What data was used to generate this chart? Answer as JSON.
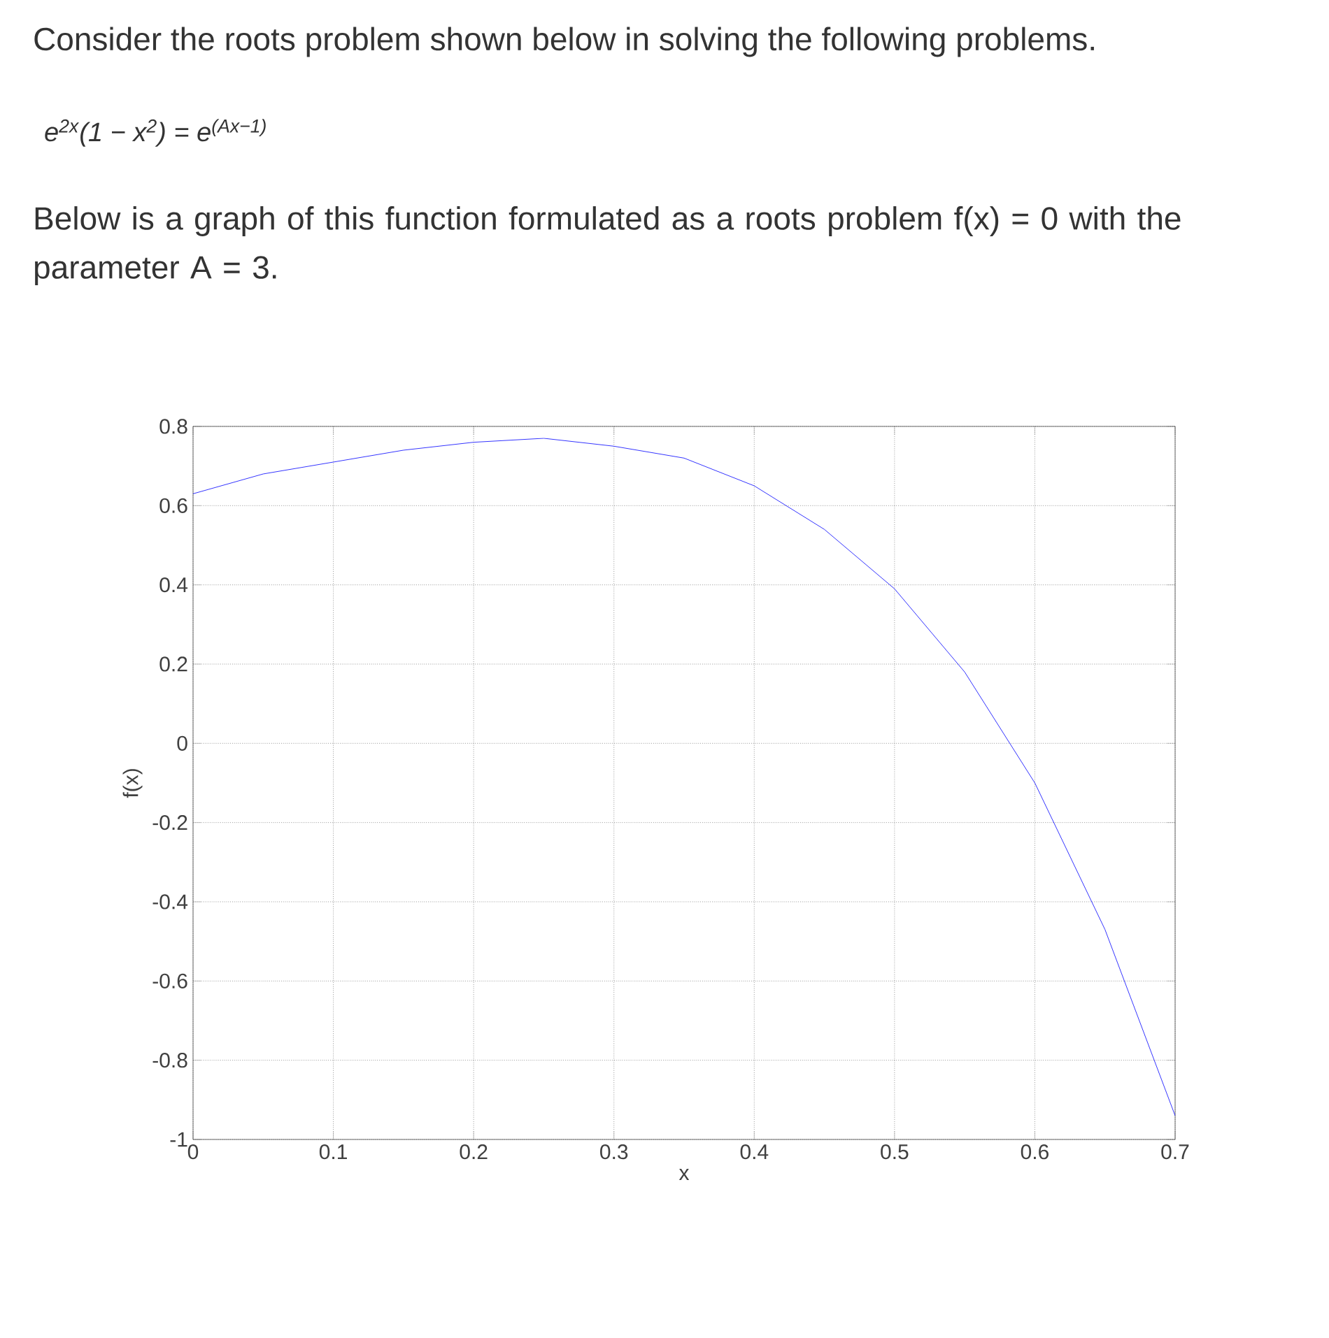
{
  "chart_data": {
    "type": "line",
    "title": "Consider the roots problem shown below in solving the following problems.",
    "subtitle": "Below is a graph of this function formulated as a roots problem f(x) = 0 with the parameter A = 3.",
    "annotations": [
      "e$^{2x}$(1 − x$^{2}$) = e$^{(Ax−1)}$"
    ],
    "xlabel": "x",
    "ylabel": "f(x)",
    "x": [
      0,
      0.05,
      0.1,
      0.15,
      0.2,
      0.25,
      0.3,
      0.35,
      0.4,
      0.45,
      0.5,
      0.55,
      0.6,
      0.65,
      0.7
    ],
    "series": [
      {
        "color": "#0000ff",
        "values": [
          0.63,
          0.68,
          0.71,
          0.74,
          0.76,
          0.77,
          0.75,
          0.72,
          0.65,
          0.54,
          0.39,
          0.18,
          -0.1,
          -0.47,
          -0.94
        ]
      }
    ],
    "xlim": [
      0,
      0.7
    ],
    "ylim": [
      -1,
      0.8
    ],
    "xticks": [
      0,
      0.1,
      0.2,
      0.3,
      0.4,
      0.5,
      0.6,
      0.7
    ],
    "yticks": [
      -1,
      -0.8,
      -0.6,
      -0.4,
      -0.2,
      0,
      0.2,
      0.4,
      0.6,
      0.8
    ],
    "grid": true,
    "marker": "none",
    "line_style": "solid"
  }
}
